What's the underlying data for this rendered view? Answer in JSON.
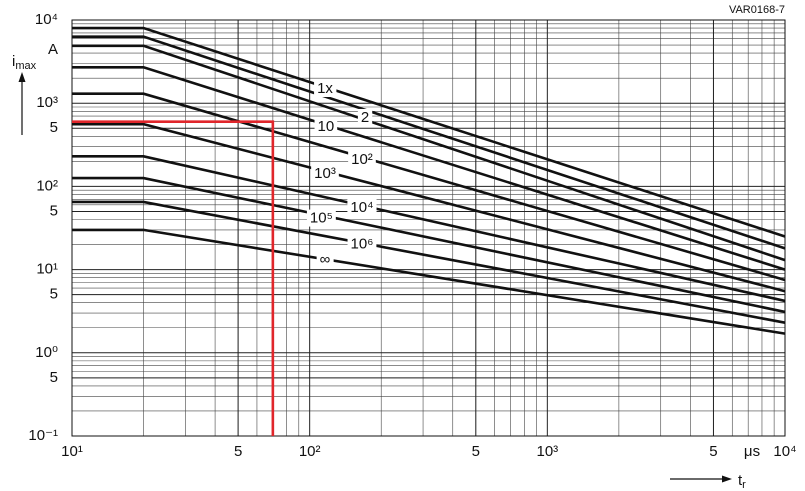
{
  "chart_data": {
    "type": "line",
    "title": "VAR0168-7",
    "y_label": "i",
    "y_label_sub": "max",
    "y_unit": "A",
    "x_label": "t",
    "x_label_sub": "r",
    "x_unit": "μs",
    "log_x": true,
    "log_y": true,
    "grid": true,
    "xlim": [
      10,
      10000
    ],
    "ylim": [
      0.1,
      10000
    ],
    "xticks": [
      {
        "value": 10,
        "label": "10¹"
      },
      {
        "value": 50,
        "label": "5"
      },
      {
        "value": 100,
        "label": "10²"
      },
      {
        "value": 500,
        "label": "5"
      },
      {
        "value": 1000,
        "label": "10³"
      },
      {
        "value": 5000,
        "label": "5"
      },
      {
        "value": 10000,
        "label": "10⁴"
      }
    ],
    "yticks": [
      {
        "value": 0.1,
        "label": "10⁻¹"
      },
      {
        "value": 0.5,
        "label": "5"
      },
      {
        "value": 1,
        "label": "10⁰"
      },
      {
        "value": 5,
        "label": "5"
      },
      {
        "value": 10,
        "label": "10¹"
      },
      {
        "value": 50,
        "label": "5"
      },
      {
        "value": 100,
        "label": "10²"
      },
      {
        "value": 500,
        "label": "5"
      },
      {
        "value": 1000,
        "label": "10³"
      },
      {
        "value": 10000,
        "label": "10⁴"
      }
    ],
    "x": [
      10,
      20,
      10000
    ],
    "series": [
      {
        "color": "#111111",
        "values": [
          8000,
          8000,
          25
        ]
      },
      {
        "color": "#111111",
        "values": [
          6300,
          6300,
          18
        ]
      },
      {
        "color": "#111111",
        "values": [
          4900,
          4900,
          13
        ]
      },
      {
        "color": "#111111",
        "values": [
          2700,
          2700,
          10
        ]
      },
      {
        "color": "#111111",
        "values": [
          1300,
          1300,
          7.5
        ]
      },
      {
        "color": "#111111",
        "values": [
          560,
          560,
          5.5
        ]
      },
      {
        "color": "#111111",
        "values": [
          230,
          230,
          4.2
        ]
      },
      {
        "color": "#111111",
        "values": [
          126,
          126,
          3.1
        ]
      },
      {
        "color": "#111111",
        "values": [
          65,
          65,
          2.3
        ]
      },
      {
        "color": "#111111",
        "values": [
          30,
          30,
          1.7
        ]
      }
    ],
    "annotations": [
      {
        "text": "1x",
        "x": 116,
        "y": 1480
      },
      {
        "text": "2",
        "x": 171,
        "y": 664
      },
      {
        "text": "10",
        "x": 117,
        "y": 518
      },
      {
        "text": "10²",
        "x": 166,
        "y": 207
      },
      {
        "text": "10³",
        "x": 116,
        "y": 141
      },
      {
        "text": "10⁴",
        "x": 166,
        "y": 55
      },
      {
        "text": "10⁵",
        "x": 112,
        "y": 41
      },
      {
        "text": "10⁶",
        "x": 166,
        "y": 20
      },
      {
        "text": "∞",
        "x": 116,
        "y": 13
      }
    ],
    "marker": {
      "x": 70,
      "y": 600,
      "color": "#e0262b"
    }
  }
}
